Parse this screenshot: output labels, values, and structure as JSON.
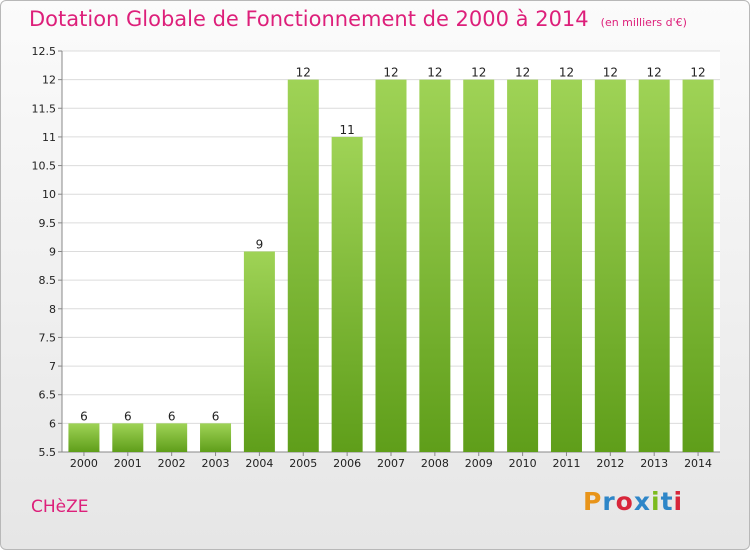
{
  "chart_data": {
    "type": "bar",
    "title": "Dotation Globale de Fonctionnement de 2000 à 2014",
    "subtitle": "(en milliers d'€)",
    "categories": [
      "2000",
      "2001",
      "2002",
      "2003",
      "2004",
      "2005",
      "2006",
      "2007",
      "2008",
      "2009",
      "2010",
      "2011",
      "2012",
      "2013",
      "2014"
    ],
    "values": [
      6,
      6,
      6,
      6,
      9,
      12,
      11,
      12,
      12,
      12,
      12,
      12,
      12,
      12,
      12
    ],
    "value_labels": [
      "6",
      "6",
      "6",
      "6",
      "9",
      "12",
      "11",
      "12",
      "12",
      "12",
      "12",
      "12",
      "12",
      "12",
      "12"
    ],
    "ylim": [
      5.5,
      12.5
    ],
    "yticks": [
      5.5,
      6,
      6.5,
      7,
      7.5,
      8,
      8.5,
      9,
      9.5,
      10,
      10.5,
      11,
      11.5,
      12,
      12.5
    ],
    "ytick_labels": [
      "5.5",
      "6",
      "6.5",
      "7",
      "7.5",
      "8",
      "8.5",
      "9",
      "9.5",
      "10",
      "10.5",
      "11",
      "11.5",
      "12",
      "12.5"
    ],
    "grid": true,
    "bar_color": "#7fbf2e"
  },
  "footer": {
    "commune": "CHèZE",
    "brand": "Proxiti"
  },
  "colors": {
    "title": "#dd1f7a",
    "logo": [
      "#e8941a",
      "#2e86c8",
      "#d8263a",
      "#2e86c8",
      "#7cbb1f",
      "#2e86c8",
      "#d8263a"
    ]
  }
}
